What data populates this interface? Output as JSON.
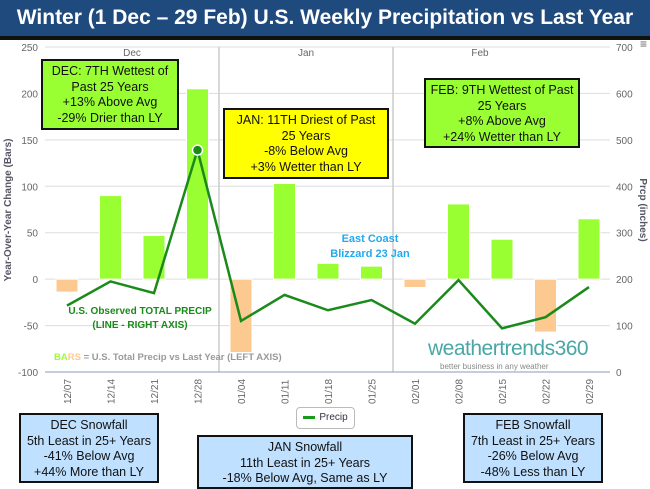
{
  "title": "Winter (1 Dec – 29 Feb) U.S. Weekly Precipitation vs Last Year",
  "chart_data": {
    "type": "bar+line",
    "categories": [
      "12/07",
      "12/14",
      "12/21",
      "12/28",
      "01/04",
      "01/11",
      "01/18",
      "01/25",
      "02/01",
      "02/08",
      "02/15",
      "02/22",
      "02/29"
    ],
    "months": [
      "Dec",
      "Jan",
      "Feb"
    ],
    "series": [
      {
        "name": "BARS",
        "axis": "left",
        "type": "bar",
        "values": [
          -14,
          90,
          47,
          205,
          -79,
          103,
          17,
          14,
          -9,
          81,
          43,
          -57,
          65
        ]
      },
      {
        "name": "Precip",
        "axis": "right",
        "type": "line",
        "values": [
          143,
          195,
          170,
          478,
          110,
          166,
          133,
          155,
          104,
          198,
          94,
          118,
          183
        ]
      }
    ],
    "ylabel": "Year-Over-Year Change (Bars)",
    "y2label": "Prcp (inches)",
    "ylim": [
      -100,
      250
    ],
    "y2lim": [
      0,
      700
    ],
    "yticks": [
      -100,
      -50,
      0,
      50,
      100,
      150,
      200,
      250
    ],
    "y2ticks": [
      0,
      100,
      200,
      300,
      400,
      500,
      600,
      700
    ],
    "colors": {
      "positive": "#99ff33",
      "negative": "#fcc990",
      "line": "#1a8a1a",
      "title_bg": "#1f4a7e"
    },
    "legend": "bottom-center",
    "grid": true
  },
  "annotations": {
    "blizzard": [
      "East Coast",
      "Blizzard 23 Jan"
    ],
    "line_label": [
      "U.S. Observed TOTAL PRECIP",
      "(LINE - RIGHT AXIS)"
    ],
    "bars_label_a": "BA",
    "bars_label_b": "RS",
    "bars_label_c": " = U.S. Total Precip vs Last Year (LEFT AXIS)"
  },
  "boxes": {
    "dec": [
      "DEC: 7TH Wettest of",
      "Past 25 Years",
      "+13% Above Avg",
      "-29% Drier than LY"
    ],
    "jan": [
      "JAN: 11TH Driest of Past",
      "25 Years",
      "-8% Below Avg",
      "+3% Wetter than LY"
    ],
    "feb": [
      "FEB: 9TH Wettest of Past",
      "25 Years",
      "+8% Above Avg",
      "+24% Wetter than LY"
    ],
    "dec_snow": [
      "DEC Snowfall",
      "5th Least in 25+ Years",
      "-41% Below Avg",
      "+44% More than LY"
    ],
    "jan_snow": [
      "JAN Snowfall",
      "11th Least in 25+ Years",
      "-18% Below Avg, Same as LY"
    ],
    "feb_snow": [
      "FEB Snowfall",
      "7th Least in 25+ Years",
      "-26% Below Avg",
      "-48% Less than LY"
    ]
  },
  "legend_label": "Precip",
  "logo": "weathertrends360",
  "logo_tagline": "better business in any weather"
}
